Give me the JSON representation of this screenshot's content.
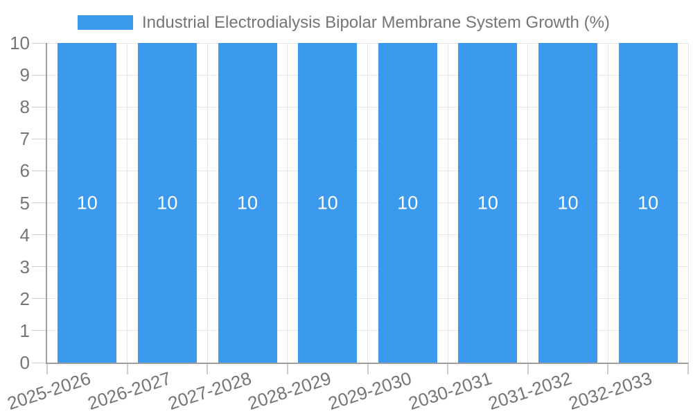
{
  "legend": {
    "label": "Industrial Electrodialysis Bipolar Membrane System Growth (%)"
  },
  "chart_data": {
    "type": "bar",
    "title": "Industrial Electrodialysis Bipolar Membrane System Growth (%)",
    "categories": [
      "2025-2026",
      "2026-2027",
      "2027-2028",
      "2028-2029",
      "2029-2030",
      "2030-2031",
      "2031-2032",
      "2032-2033"
    ],
    "series": [
      {
        "name": "Industrial Electrodialysis Bipolar Membrane System Growth (%)",
        "values": [
          10,
          10,
          10,
          10,
          10,
          10,
          10,
          10
        ]
      }
    ],
    "bar_value_labels": [
      "10",
      "10",
      "10",
      "10",
      "10",
      "10",
      "10",
      "10"
    ],
    "xlabel": "",
    "ylabel": "",
    "ylim": [
      0,
      10
    ],
    "yticks": [
      0,
      1,
      2,
      3,
      4,
      5,
      6,
      7,
      8,
      9,
      10
    ],
    "grid": true,
    "legend_position": "top",
    "x_label_rotation_deg": -18,
    "colors": {
      "bar": "#3B99EE",
      "axis_text": "#757575",
      "grid_line": "#e6e6e6",
      "axis_line": "#9e9e9e",
      "tick_line": "#cccccc",
      "bar_label_text": "#ffffff",
      "background": "#ffffff"
    }
  }
}
